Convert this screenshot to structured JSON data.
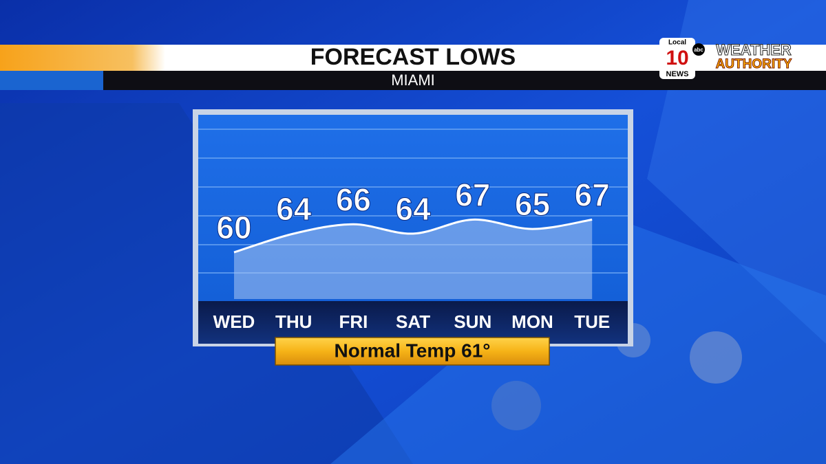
{
  "chart_data": {
    "type": "line",
    "title": "FORECAST LOWS",
    "subtitle": "MIAMI",
    "categories": [
      "WED",
      "THU",
      "FRI",
      "SAT",
      "SUN",
      "MON",
      "TUE"
    ],
    "values": [
      60,
      64,
      66,
      64,
      67,
      65,
      67
    ],
    "color": "#ffffff",
    "ylim": [
      50,
      89
    ],
    "grid": true,
    "annotation": "Normal Temp 61°"
  },
  "logo": {
    "station": "Local",
    "number": "10",
    "news": "NEWS",
    "network": "abc",
    "brand_top": "WEATHER",
    "brand_bottom": "AUTHORITY"
  }
}
